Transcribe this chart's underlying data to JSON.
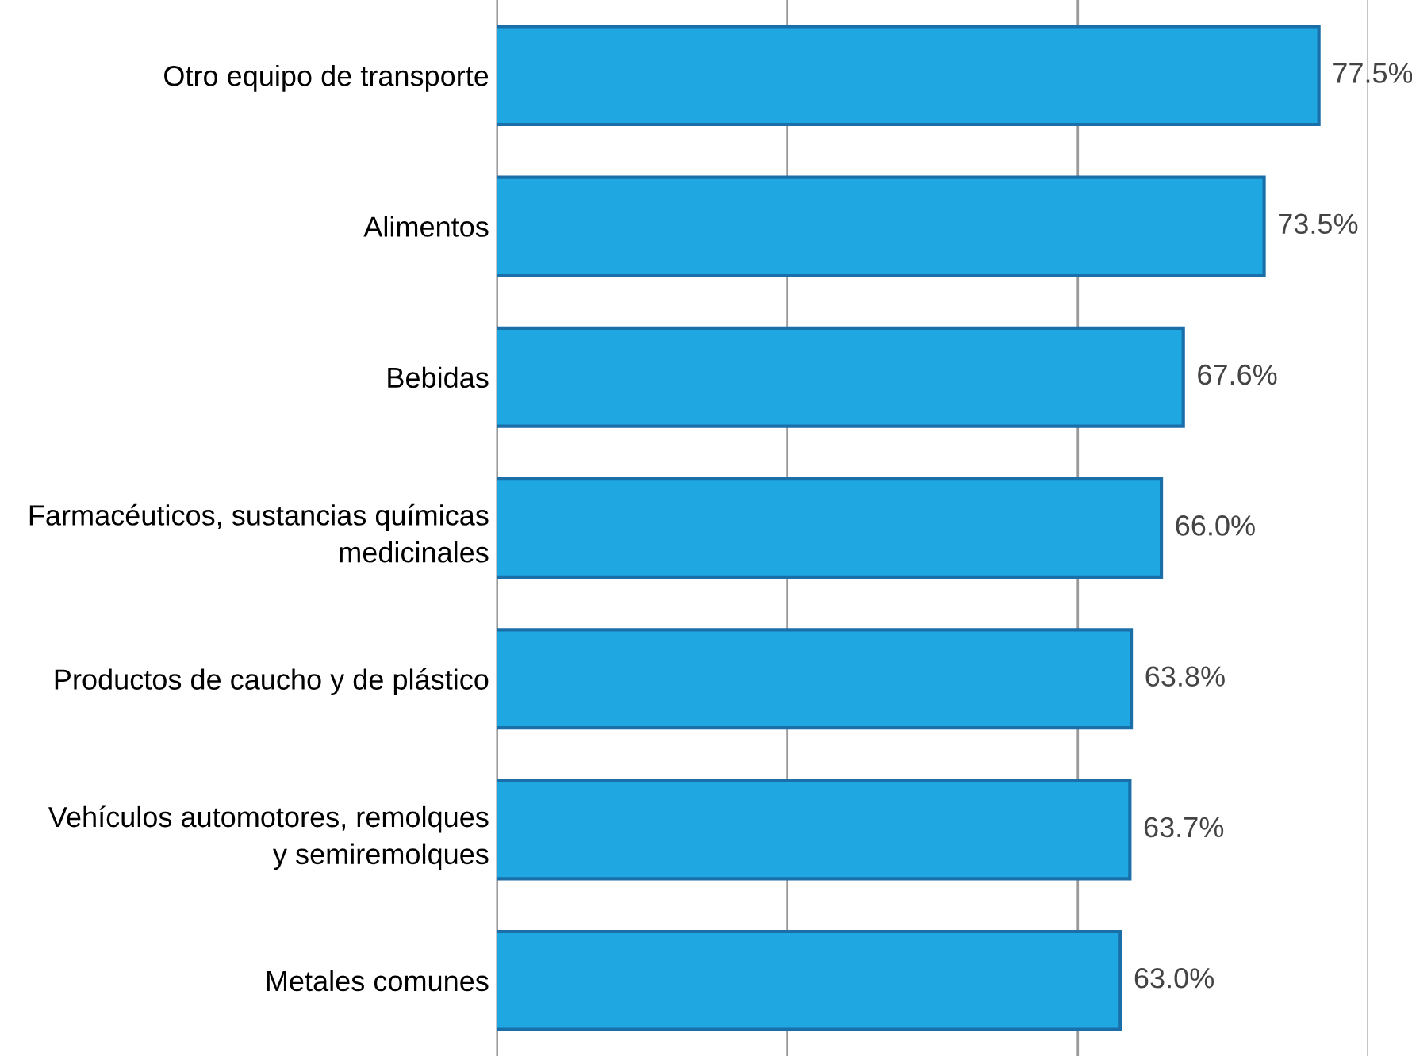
{
  "chart_data": {
    "type": "bar",
    "orientation": "horizontal",
    "categories": [
      "Otro equipo de transporte",
      "Alimentos",
      "Bebidas",
      "Farmacéuticos, sustancias químicas\nmedicinales",
      "Productos de caucho y de plástico",
      "Vehículos automotores, remolques\ny semiremolques",
      "Metales comunes"
    ],
    "values": [
      77.5,
      73.5,
      67.6,
      66.0,
      63.8,
      63.7,
      63.0
    ],
    "value_labels": [
      "77.5%",
      "73.5%",
      "67.6%",
      "66.0%",
      "63.8%",
      "63.7%",
      "63.0%"
    ],
    "color": "#1ea7e1",
    "xlim": [
      17.5,
      81.1
    ],
    "xticks": [
      {
        "value": 17.5,
        "label": null
      },
      {
        "value": 38.7,
        "label": null
      },
      {
        "value": 59.9,
        "label": null
      },
      {
        "value": 81.1,
        "label": null
      }
    ],
    "grid": "x"
  }
}
